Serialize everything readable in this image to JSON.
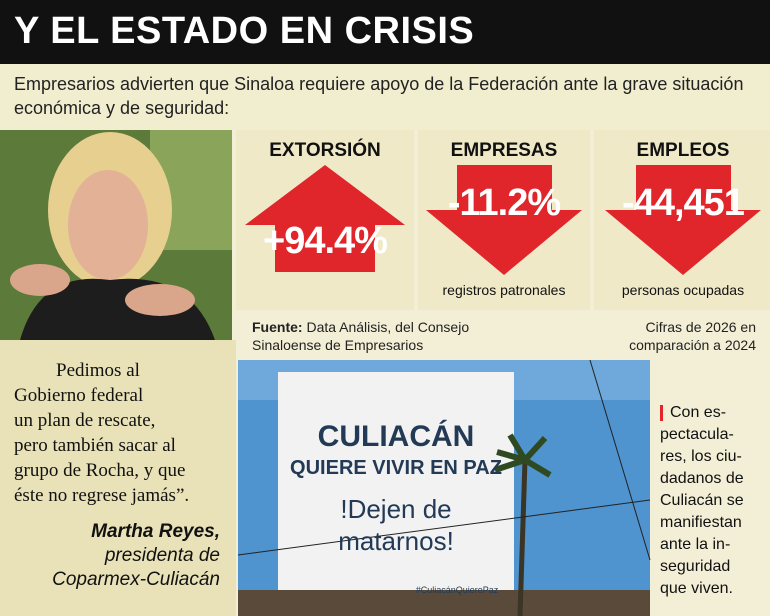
{
  "header": {
    "title": "Y EL ESTADO EN CRISIS",
    "subtitle": "Empresarios advierten que Sinaloa requiere apoyo de la Federación ante la grave situación económica y de seguridad:"
  },
  "stats": [
    {
      "heading": "EXTORSIÓN",
      "value": "+94.4%"
    },
    {
      "heading": "EMPRESAS",
      "value": "-11.2%",
      "label": "registros patronales"
    },
    {
      "heading": "EMPLEOS",
      "value": "-44,451",
      "label": "personas ocupadas"
    }
  ],
  "source": {
    "prefix": "Fuente:",
    "text": "Data Análisis, del Consejo Sinaloense de Empresarios",
    "note": "Cifras de 2026 en comparación a 2024"
  },
  "quote": {
    "lines": [
      "Pedimos al",
      "Gobierno federal",
      "un plan de rescate,",
      "pero también sacar al",
      "grupo de Rocha, y que",
      "éste no regrese jamás”."
    ],
    "author": "Martha Reyes,",
    "role": "presidenta de",
    "org": "Coparmex-Culiacán"
  },
  "billboard": {
    "line1": "CULIACÁN",
    "line2": "QUIERE VIVIR EN PAZ",
    "line3": "!Dejen de",
    "line4": "matarnos!",
    "hashtag": "#CuliacánQuierePaz"
  },
  "caption": {
    "lines": [
      "Con es-",
      "pectacula-",
      "res, los ciu-",
      "dadanos de",
      "Culiacán se",
      "manifiestan",
      "ante la in-",
      "seguridad",
      "que viven."
    ]
  }
}
